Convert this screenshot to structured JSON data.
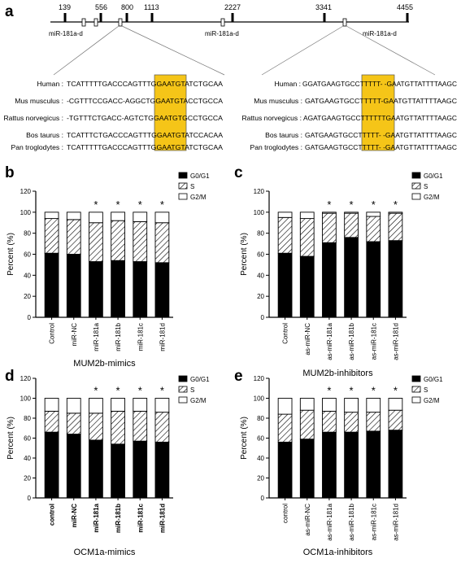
{
  "panel_a": {
    "letter": "a",
    "positions": [
      "139",
      "556",
      "800",
      "1113",
      "2227",
      "3341",
      "4455"
    ],
    "mir_labels": [
      "miR-181a-d",
      "miR-181a-d",
      "miR-181a-d"
    ],
    "left_alignment": [
      {
        "species": "Human :",
        "seq": "TCATTTTTGACCCAGTTTGGAATGTATCTGCAA"
      },
      {
        "species": "Mus musculus :",
        "seq": "-CGTTTCCGACC-AGGCTGGAATGTACCTGCCA"
      },
      {
        "species": "Rattus norvegicus :",
        "seq": "-TGTTTCTGACC-AGTCTGGAATGTGCCTGCCA"
      },
      {
        "species": "Bos taurus :",
        "seq": "TCATTTCTGACCCAGTTTGGAATGTATCCACAA"
      },
      {
        "species": "Pan troglodytes :",
        "seq": "TCATTTTTGACCCAGTTTGGAATGTATCTGCAA"
      }
    ],
    "right_alignment": [
      {
        "species": "Human :",
        "seq": "GGATGAAGTGCCTTTTT- -GAATGTTATTTTAAGC"
      },
      {
        "species": "Mus musculus :",
        "seq": "GATGAAGTGCCTTTTT-GAATGTTATTTTAAGC"
      },
      {
        "species": "Rattus norvegicus :",
        "seq": "AGATGAAGTGCCTTTTTTGAATGTTATTTTAAGC"
      },
      {
        "species": "Bos taurus :",
        "seq": "GATGAAGTGCCTTTTT- -GAATGTTATTTTAAGC"
      },
      {
        "species": "Pan troglodytes :",
        "seq": "GATGAAGTGCCTTTTT- -GAATGTTATTTTAAGC"
      }
    ],
    "highlight_color": "#f5c518"
  },
  "chart_data": [
    {
      "type": "bar",
      "stacked": true,
      "letter": "b",
      "xlabel": "MUM2b-mimics",
      "ylabel": "Percent (%)",
      "ylim": [
        0,
        120
      ],
      "yticks": [
        0,
        20,
        40,
        60,
        80,
        100,
        120
      ],
      "categories": [
        "Control",
        "miR-NC",
        "miR-181a",
        "miR-181b",
        "miR-181c",
        "miR-181d"
      ],
      "series": [
        {
          "name": "G0/G1",
          "values": [
            61,
            60,
            53,
            54,
            53,
            52
          ]
        },
        {
          "name": "S",
          "values": [
            33,
            33,
            37,
            38,
            38,
            38
          ]
        },
        {
          "name": "G2/M",
          "values": [
            6,
            7,
            10,
            8,
            9,
            10
          ]
        }
      ],
      "significance": [
        "",
        "",
        "*",
        "*",
        "*",
        "*"
      ],
      "legend_position": "top-right",
      "bold_ticks": false
    },
    {
      "type": "bar",
      "stacked": true,
      "letter": "c",
      "xlabel": "MUM2b-inhibitors",
      "ylabel": "Percent (%)",
      "ylim": [
        0,
        120
      ],
      "yticks": [
        0,
        20,
        40,
        60,
        80,
        100,
        120
      ],
      "categories": [
        "Control",
        "as-miR-NC",
        "as-miR-181a",
        "as-miR-181b",
        "as-miR-181c",
        "as-miR-181d"
      ],
      "series": [
        {
          "name": "G0/G1",
          "values": [
            61,
            58,
            71,
            76,
            72,
            73
          ]
        },
        {
          "name": "S",
          "values": [
            34,
            36,
            28,
            23,
            24,
            26
          ]
        },
        {
          "name": "G2/M",
          "values": [
            5,
            6,
            1,
            1,
            4,
            1
          ]
        }
      ],
      "significance": [
        "",
        "",
        "*",
        "*",
        "*",
        "*"
      ],
      "legend_position": "top-right",
      "bold_ticks": false
    },
    {
      "type": "bar",
      "stacked": true,
      "letter": "d",
      "xlabel": "OCM1a-mimics",
      "ylabel": "Percent (%)",
      "ylim": [
        0,
        120
      ],
      "yticks": [
        0,
        20,
        40,
        60,
        80,
        100,
        120
      ],
      "categories": [
        "control",
        "miR-NC",
        "miR-181a",
        "miR-181b",
        "miR-181c",
        "miR-181d"
      ],
      "series": [
        {
          "name": "G0/G1",
          "values": [
            66,
            64,
            58,
            54,
            57,
            56
          ]
        },
        {
          "name": "S",
          "values": [
            21,
            21,
            27,
            33,
            30,
            30
          ]
        },
        {
          "name": "G2/M",
          "values": [
            13,
            15,
            15,
            13,
            13,
            14
          ]
        }
      ],
      "significance": [
        "",
        "",
        "*",
        "*",
        "*",
        "*"
      ],
      "legend_position": "top-right",
      "bold_ticks": true
    },
    {
      "type": "bar",
      "stacked": true,
      "letter": "e",
      "xlabel": "OCM1a-inhibitors",
      "ylabel": "Percent (%)",
      "ylim": [
        0,
        120
      ],
      "yticks": [
        0,
        20,
        40,
        60,
        80,
        100,
        120
      ],
      "categories": [
        "control",
        "as-miR-NC",
        "as-miR-181a",
        "as-miR-181b",
        "as-miR-181c",
        "as-miR-181d"
      ],
      "series": [
        {
          "name": "G0/G1",
          "values": [
            56,
            59,
            66,
            66,
            67,
            68
          ]
        },
        {
          "name": "S",
          "values": [
            28,
            29,
            21,
            20,
            19,
            20
          ]
        },
        {
          "name": "G2/M",
          "values": [
            16,
            12,
            13,
            14,
            14,
            12
          ]
        }
      ],
      "significance": [
        "",
        "",
        "*",
        "*",
        "*",
        "*"
      ],
      "legend_position": "top-right",
      "bold_ticks": false
    }
  ]
}
